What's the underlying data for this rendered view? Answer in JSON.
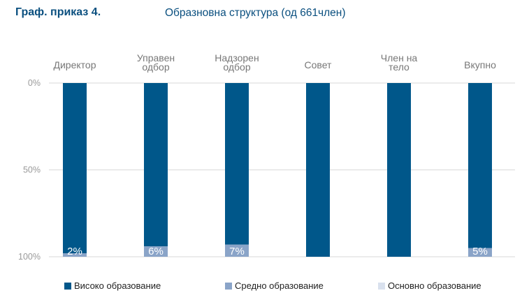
{
  "header": {
    "label": "Граф. приказ 4.",
    "title": "Образновна структура (од 661член)"
  },
  "colors": {
    "high": "#00578a",
    "mid": "#8aa4c8",
    "basic": "#d9e1ee",
    "grid": "#d9d9d9"
  },
  "chart_data": {
    "type": "bar",
    "stacked": true,
    "orientation": "vertical",
    "y_axis_direction": "inverted",
    "categories": [
      [
        "Директор"
      ],
      [
        "Управен",
        "одбор"
      ],
      [
        "Надзорен",
        "одбор"
      ],
      [
        "Совет"
      ],
      [
        "Член на",
        "тело"
      ],
      [
        "Вкупно"
      ]
    ],
    "series": [
      {
        "name": "Високо образование",
        "color": "#00578a",
        "values": [
          98,
          94,
          93,
          100,
          100,
          95
        ]
      },
      {
        "name": "Средно образование",
        "color": "#8aa4c8",
        "values": [
          2,
          6,
          7,
          0,
          0,
          5
        ]
      },
      {
        "name": "Основно образование",
        "color": "#d9e1ee",
        "values": [
          0,
          0,
          0,
          0,
          0,
          0
        ]
      }
    ],
    "data_labels": [
      "2%",
      "6%",
      "7%",
      "",
      "",
      "5%"
    ],
    "y_ticks": [
      {
        "value": 0,
        "label": "0%"
      },
      {
        "value": 50,
        "label": "50%"
      },
      {
        "value": 100,
        "label": "100%"
      }
    ],
    "ylim": [
      0,
      100
    ],
    "grid": true,
    "legend_position": "bottom"
  }
}
